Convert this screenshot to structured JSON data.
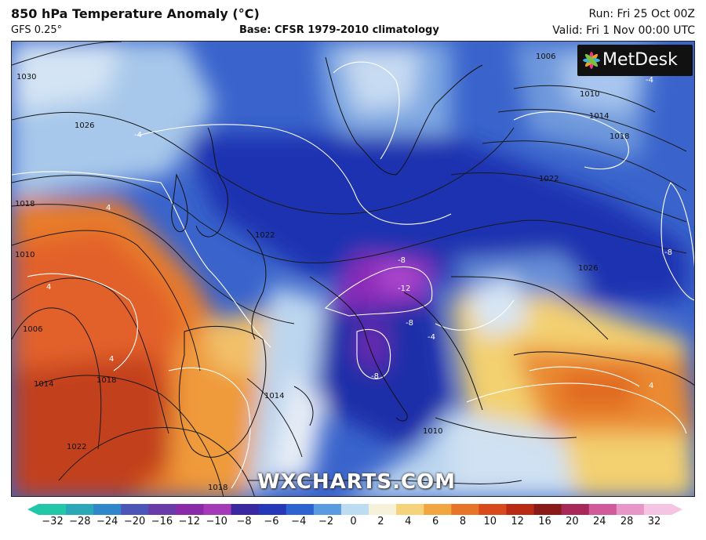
{
  "header": {
    "title": "850 hPa Temperature Anomaly (°C)",
    "model": "GFS 0.25°",
    "base": "Base: CFSR 1979-2010 climatology",
    "run": "Run: Fri 25 Oct 00Z",
    "valid": "Valid: Fri 1 Nov 00:00 UTC"
  },
  "logo": {
    "text": "MetDesk"
  },
  "watermark": "WXCHARTS.COM",
  "colorbar": {
    "ticks": [
      "−32",
      "−28",
      "−24",
      "−20",
      "−16",
      "−12",
      "−10",
      "−8",
      "−6",
      "−4",
      "−2",
      "0",
      "2",
      "4",
      "6",
      "8",
      "10",
      "12",
      "16",
      "20",
      "24",
      "28",
      "32"
    ],
    "colors": [
      "#22c7a8",
      "#2aa8b8",
      "#2f86c8",
      "#4b56b8",
      "#6a3aa8",
      "#8a2aa8",
      "#a43ab8",
      "#3a28a0",
      "#2438b8",
      "#2e62d0",
      "#5a9ae0",
      "#bcdcf2",
      "#f6f2da",
      "#f6d37a",
      "#f2a640",
      "#e8742a",
      "#d84a1c",
      "#b82a14",
      "#8a1a18",
      "#a8285a",
      "#d05a9a",
      "#e896c8",
      "#f4c4e2"
    ]
  },
  "isobar_labels": [
    {
      "text": "1030"
    },
    {
      "text": "1026"
    },
    {
      "text": "1018"
    },
    {
      "text": "1010"
    },
    {
      "text": "1006"
    },
    {
      "text": "1014"
    },
    {
      "text": "1018"
    },
    {
      "text": "1022"
    },
    {
      "text": "1006"
    },
    {
      "text": "1010"
    },
    {
      "text": "1014"
    },
    {
      "text": "1018"
    },
    {
      "text": "1022"
    },
    {
      "text": "1026"
    },
    {
      "text": "1022"
    },
    {
      "text": "1014"
    },
    {
      "text": "1010"
    },
    {
      "text": "1018"
    }
  ],
  "anomaly_labels": [
    {
      "text": "-4"
    },
    {
      "text": "-4"
    },
    {
      "text": "-8"
    },
    {
      "text": "-12"
    },
    {
      "text": "-8"
    },
    {
      "text": "-8"
    },
    {
      "text": "-8"
    },
    {
      "text": "4"
    },
    {
      "text": "4"
    },
    {
      "text": "4"
    },
    {
      "text": "4"
    },
    {
      "text": "-4"
    }
  ]
}
